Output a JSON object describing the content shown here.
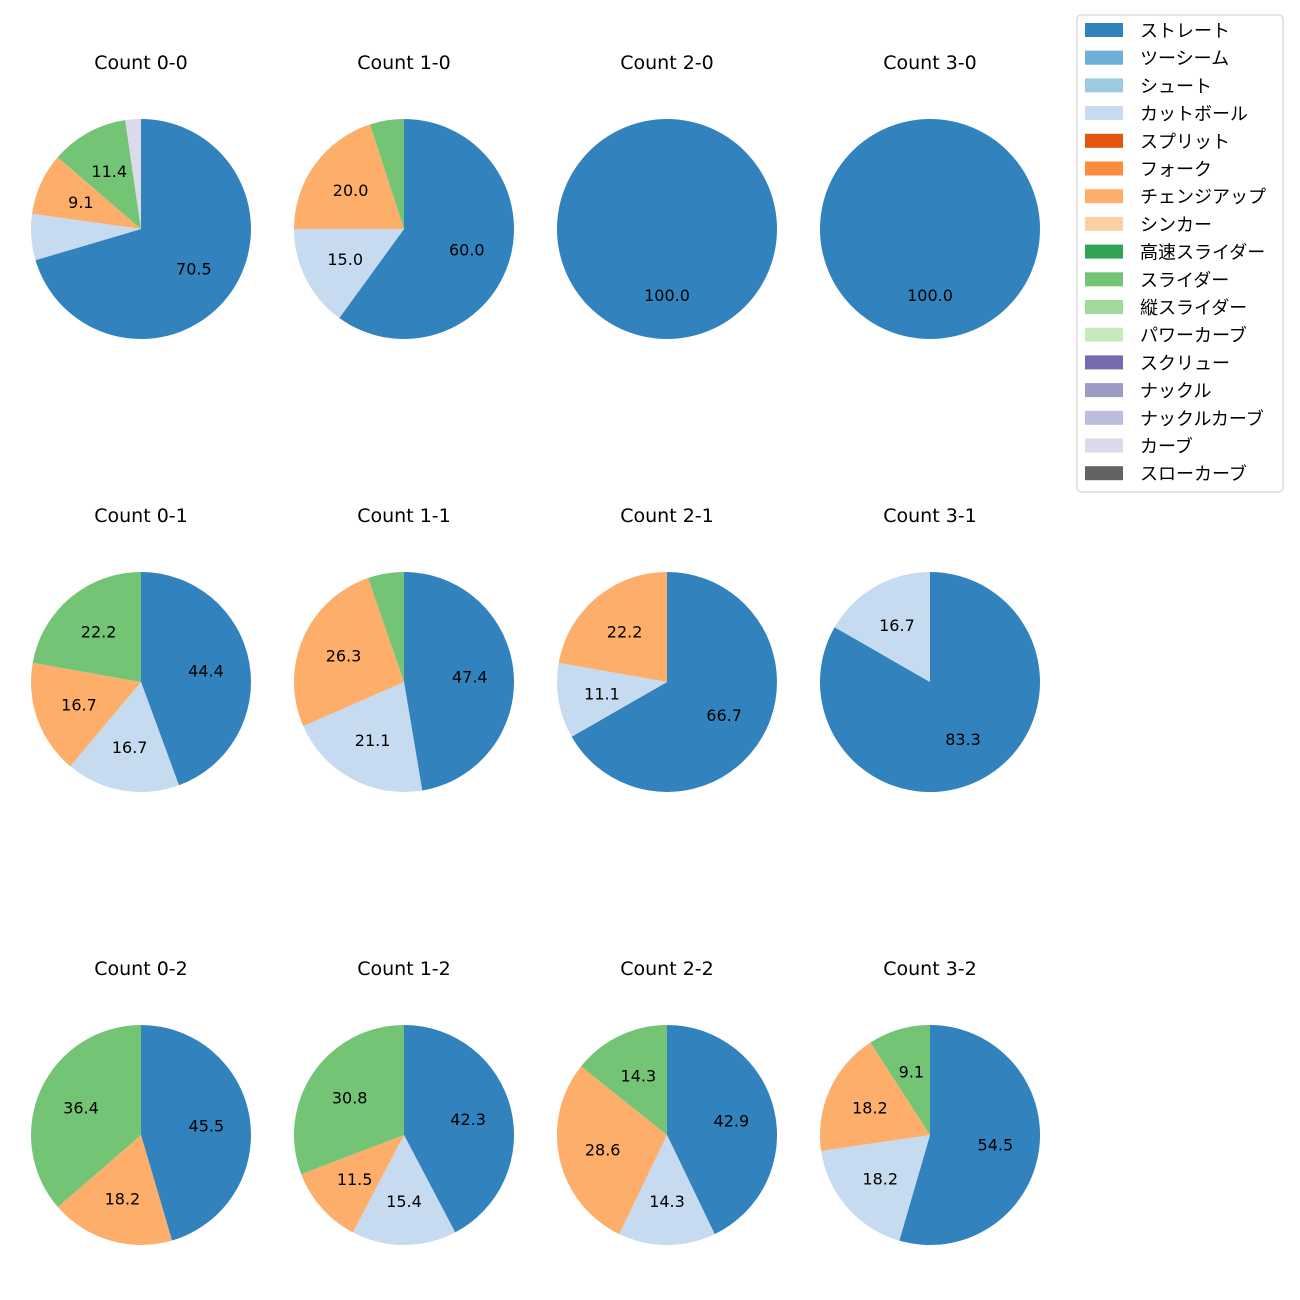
{
  "chart_data": {
    "type": "pie",
    "legend": {
      "placement": "top-right",
      "entries": [
        {
          "name": "ストレート",
          "color": "#3182bd"
        },
        {
          "name": "ツーシーム",
          "color": "#6baed6"
        },
        {
          "name": "シュート",
          "color": "#9ecae1"
        },
        {
          "name": "カットボール",
          "color": "#c6dbef"
        },
        {
          "name": "スプリット",
          "color": "#e6550d"
        },
        {
          "name": "フォーク",
          "color": "#fd8d3c"
        },
        {
          "name": "チェンジアップ",
          "color": "#fdae6b"
        },
        {
          "name": "シンカー",
          "color": "#fdd0a2"
        },
        {
          "name": "高速スライダー",
          "color": "#31a354"
        },
        {
          "name": "スライダー",
          "color": "#74c476"
        },
        {
          "name": "縦スライダー",
          "color": "#a1d99b"
        },
        {
          "name": "パワーカーブ",
          "color": "#c7e9c0"
        },
        {
          "name": "スクリュー",
          "color": "#756bb1"
        },
        {
          "name": "ナックル",
          "color": "#9e9ac8"
        },
        {
          "name": "ナックルカーブ",
          "color": "#bcbddc"
        },
        {
          "name": "カーブ",
          "color": "#dadaeb"
        },
        {
          "name": "スローカーブ",
          "color": "#636363"
        }
      ]
    },
    "pies": [
      {
        "title": "Count 0-0",
        "slices": [
          {
            "category": "ストレート",
            "value": 70.5,
            "label": "70.5"
          },
          {
            "category": "カットボール",
            "value": 6.8,
            "label": ""
          },
          {
            "category": "チェンジアップ",
            "value": 9.1,
            "label": "9.1"
          },
          {
            "category": "スライダー",
            "value": 11.4,
            "label": "11.4"
          },
          {
            "category": "カーブ",
            "value": 2.3,
            "label": ""
          }
        ]
      },
      {
        "title": "Count 1-0",
        "slices": [
          {
            "category": "ストレート",
            "value": 60.0,
            "label": "60.0"
          },
          {
            "category": "カットボール",
            "value": 15.0,
            "label": "15.0"
          },
          {
            "category": "チェンジアップ",
            "value": 20.0,
            "label": "20.0"
          },
          {
            "category": "スライダー",
            "value": 5.0,
            "label": ""
          }
        ]
      },
      {
        "title": "Count 2-0",
        "slices": [
          {
            "category": "ストレート",
            "value": 100.0,
            "label": "100.0"
          }
        ]
      },
      {
        "title": "Count 3-0",
        "slices": [
          {
            "category": "ストレート",
            "value": 100.0,
            "label": "100.0"
          }
        ]
      },
      {
        "title": "Count 0-1",
        "slices": [
          {
            "category": "ストレート",
            "value": 44.4,
            "label": "44.4"
          },
          {
            "category": "カットボール",
            "value": 16.7,
            "label": "16.7"
          },
          {
            "category": "チェンジアップ",
            "value": 16.7,
            "label": "16.7"
          },
          {
            "category": "スライダー",
            "value": 22.2,
            "label": "22.2"
          }
        ]
      },
      {
        "title": "Count 1-1",
        "slices": [
          {
            "category": "ストレート",
            "value": 47.4,
            "label": "47.4"
          },
          {
            "category": "カットボール",
            "value": 21.1,
            "label": "21.1"
          },
          {
            "category": "チェンジアップ",
            "value": 26.3,
            "label": "26.3"
          },
          {
            "category": "スライダー",
            "value": 5.3,
            "label": ""
          }
        ]
      },
      {
        "title": "Count 2-1",
        "slices": [
          {
            "category": "ストレート",
            "value": 66.7,
            "label": "66.7"
          },
          {
            "category": "カットボール",
            "value": 11.1,
            "label": "11.1"
          },
          {
            "category": "チェンジアップ",
            "value": 22.2,
            "label": "22.2"
          }
        ]
      },
      {
        "title": "Count 3-1",
        "slices": [
          {
            "category": "ストレート",
            "value": 83.3,
            "label": "83.3"
          },
          {
            "category": "カットボール",
            "value": 16.7,
            "label": "16.7"
          }
        ]
      },
      {
        "title": "Count 0-2",
        "slices": [
          {
            "category": "ストレート",
            "value": 45.5,
            "label": "45.5"
          },
          {
            "category": "チェンジアップ",
            "value": 18.2,
            "label": "18.2"
          },
          {
            "category": "スライダー",
            "value": 36.4,
            "label": "36.4"
          }
        ]
      },
      {
        "title": "Count 1-2",
        "slices": [
          {
            "category": "ストレート",
            "value": 42.3,
            "label": "42.3"
          },
          {
            "category": "カットボール",
            "value": 15.4,
            "label": "15.4"
          },
          {
            "category": "チェンジアップ",
            "value": 11.5,
            "label": "11.5"
          },
          {
            "category": "スライダー",
            "value": 30.8,
            "label": "30.8"
          }
        ]
      },
      {
        "title": "Count 2-2",
        "slices": [
          {
            "category": "ストレート",
            "value": 42.9,
            "label": "42.9"
          },
          {
            "category": "カットボール",
            "value": 14.3,
            "label": "14.3"
          },
          {
            "category": "チェンジアップ",
            "value": 28.6,
            "label": "28.6"
          },
          {
            "category": "スライダー",
            "value": 14.3,
            "label": "14.3"
          }
        ]
      },
      {
        "title": "Count 3-2",
        "slices": [
          {
            "category": "ストレート",
            "value": 54.5,
            "label": "54.5"
          },
          {
            "category": "カットボール",
            "value": 18.2,
            "label": "18.2"
          },
          {
            "category": "チェンジアップ",
            "value": 18.2,
            "label": "18.2"
          },
          {
            "category": "スライダー",
            "value": 9.1,
            "label": "9.1"
          }
        ]
      }
    ]
  }
}
